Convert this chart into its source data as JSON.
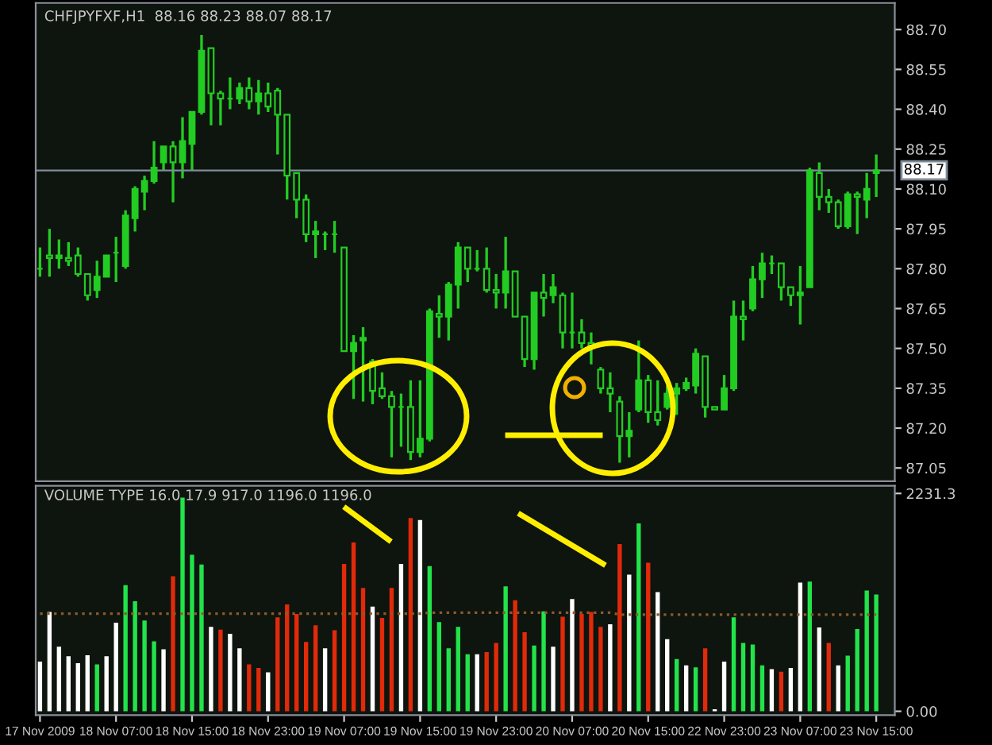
{
  "chart_data": [
    {
      "type": "candlestick",
      "title": "CHFJPYFXF,H1  88.16 88.23 88.07 88.17",
      "categories": [
        null,
        null,
        null,
        null,
        null,
        null,
        null,
        null,
        null,
        null,
        null,
        null,
        null,
        null,
        null,
        null,
        null,
        null,
        null,
        null,
        null,
        null,
        null,
        null,
        null,
        null,
        null,
        null,
        null,
        null,
        null,
        null,
        null,
        null,
        null,
        null,
        null,
        null,
        null,
        null,
        null,
        null,
        null,
        null,
        null,
        null,
        null,
        null,
        null,
        null,
        null,
        null,
        null,
        null,
        null,
        null,
        null,
        null,
        null,
        null,
        null,
        null,
        null,
        null,
        null,
        null,
        null,
        null,
        null,
        null,
        null,
        null,
        null,
        null,
        null,
        null,
        null,
        null,
        null,
        null,
        null,
        null,
        null,
        null,
        null,
        null,
        null,
        null,
        null
      ],
      "series": [
        {
          "color": "#22cc22",
          "ohlc": [
            [
              87.8,
              87.88,
              87.77,
              87.8
            ],
            [
              87.85,
              87.95,
              87.77,
              87.84
            ],
            [
              87.84,
              87.91,
              87.8,
              87.85
            ],
            [
              87.84,
              87.9,
              87.81,
              87.83
            ],
            [
              87.85,
              87.88,
              87.77,
              87.78
            ],
            [
              87.78,
              87.78,
              87.68,
              87.7
            ],
            [
              87.72,
              87.83,
              87.69,
              87.77
            ],
            [
              87.77,
              87.85,
              87.77,
              87.85
            ],
            [
              87.86,
              87.92,
              87.75,
              87.86
            ],
            [
              87.81,
              88.02,
              87.8,
              88.0
            ],
            [
              87.99,
              88.11,
              87.94,
              88.1
            ],
            [
              88.09,
              88.15,
              88.02,
              88.13
            ],
            [
              88.13,
              88.28,
              88.12,
              88.18
            ],
            [
              88.2,
              88.26,
              88.17,
              88.26
            ],
            [
              88.26,
              88.28,
              88.05,
              88.2
            ],
            [
              88.2,
              88.37,
              88.14,
              88.28
            ],
            [
              88.27,
              88.39,
              88.17,
              88.39
            ],
            [
              88.39,
              88.68,
              88.38,
              88.62
            ],
            [
              88.63,
              88.63,
              88.34,
              88.46
            ],
            [
              88.46,
              88.47,
              88.34,
              88.44
            ],
            [
              88.44,
              88.52,
              88.4,
              88.44
            ],
            [
              88.44,
              88.5,
              88.42,
              88.48
            ],
            [
              88.48,
              88.52,
              88.4,
              88.43
            ],
            [
              88.43,
              88.51,
              88.38,
              88.46
            ],
            [
              88.46,
              88.5,
              88.39,
              88.41
            ],
            [
              88.47,
              88.48,
              88.23,
              88.38
            ],
            [
              88.38,
              88.38,
              88.06,
              88.15
            ],
            [
              88.16,
              88.16,
              87.99,
              88.06
            ],
            [
              88.06,
              88.08,
              87.9,
              87.93
            ],
            [
              87.93,
              87.98,
              87.84,
              87.94
            ],
            [
              87.93,
              87.94,
              87.87,
              87.93
            ],
            [
              87.93,
              87.98,
              87.86,
              87.93
            ],
            [
              87.88,
              87.88,
              87.49,
              87.49
            ],
            [
              87.49,
              87.55,
              87.31,
              87.52
            ],
            [
              87.53,
              87.58,
              87.3,
              87.54
            ],
            [
              87.45,
              87.46,
              87.29,
              87.34
            ],
            [
              87.35,
              87.41,
              87.31,
              87.32
            ],
            [
              87.32,
              87.34,
              87.09,
              87.28
            ],
            [
              87.28,
              87.33,
              87.13,
              87.28
            ],
            [
              87.28,
              87.38,
              87.08,
              87.11
            ],
            [
              87.11,
              87.38,
              87.09,
              87.16
            ],
            [
              87.16,
              87.65,
              87.15,
              87.64
            ],
            [
              87.63,
              87.7,
              87.54,
              87.62
            ],
            [
              87.62,
              87.75,
              87.53,
              87.74
            ],
            [
              87.74,
              87.9,
              87.65,
              87.88
            ],
            [
              87.88,
              87.88,
              87.75,
              87.8
            ],
            [
              87.8,
              87.87,
              87.79,
              87.8
            ],
            [
              87.8,
              87.88,
              87.71,
              87.72
            ],
            [
              87.72,
              87.78,
              87.65,
              87.71
            ],
            [
              87.71,
              87.92,
              87.65,
              87.79
            ],
            [
              87.79,
              87.79,
              87.62,
              87.62
            ],
            [
              87.62,
              87.62,
              87.43,
              87.46
            ],
            [
              87.46,
              87.71,
              87.42,
              87.71
            ],
            [
              87.71,
              87.78,
              87.62,
              87.69
            ],
            [
              87.7,
              87.78,
              87.67,
              87.73
            ],
            [
              87.7,
              87.71,
              87.5,
              87.56
            ],
            [
              87.56,
              87.71,
              87.5,
              87.56
            ],
            [
              87.56,
              87.61,
              87.5,
              87.52
            ],
            [
              87.52,
              87.56,
              87.44,
              87.51
            ],
            [
              87.42,
              87.43,
              87.33,
              87.35
            ],
            [
              87.35,
              87.41,
              87.26,
              87.33
            ],
            [
              87.3,
              87.32,
              87.07,
              87.17
            ],
            [
              87.17,
              87.26,
              87.09,
              87.19
            ],
            [
              87.27,
              87.53,
              87.26,
              87.38
            ],
            [
              87.38,
              87.4,
              87.22,
              87.26
            ],
            [
              87.26,
              87.38,
              87.21,
              87.23
            ],
            [
              87.28,
              87.36,
              87.27,
              87.33
            ],
            [
              87.33,
              87.37,
              87.25,
              87.35
            ],
            [
              87.35,
              87.39,
              87.34,
              87.37
            ],
            [
              87.36,
              87.5,
              87.33,
              87.48
            ],
            [
              87.47,
              87.47,
              87.24,
              87.28
            ],
            [
              87.28,
              87.28,
              87.27,
              87.27
            ],
            [
              87.27,
              87.4,
              87.27,
              87.35
            ],
            [
              87.35,
              87.68,
              87.34,
              87.62
            ],
            [
              87.62,
              87.68,
              87.53,
              87.61
            ],
            [
              87.65,
              87.81,
              87.64,
              87.76
            ],
            [
              87.76,
              87.86,
              87.69,
              87.82
            ],
            [
              87.82,
              87.85,
              87.78,
              87.82
            ],
            [
              87.82,
              87.82,
              87.68,
              87.73
            ],
            [
              87.73,
              87.73,
              87.66,
              87.7
            ],
            [
              87.7,
              87.81,
              87.59,
              87.71
            ],
            [
              87.73,
              88.18,
              87.73,
              88.17
            ],
            [
              88.16,
              88.2,
              88.02,
              88.07
            ],
            [
              88.07,
              88.1,
              88.01,
              88.05
            ],
            [
              88.05,
              88.06,
              87.95,
              87.96
            ],
            [
              87.96,
              88.09,
              87.95,
              88.08
            ],
            [
              88.08,
              88.09,
              87.93,
              88.07
            ],
            [
              88.06,
              88.16,
              87.99,
              88.1
            ],
            [
              88.16,
              88.23,
              88.07,
              88.17
            ]
          ]
        }
      ],
      "ylim": [
        87.0,
        88.8
      ],
      "yticks": [
        {
          "value": 87.05,
          "label": "87.05"
        },
        {
          "value": 87.2,
          "label": "87.20"
        },
        {
          "value": 87.35,
          "label": "87.35"
        },
        {
          "value": 87.5,
          "label": "87.50"
        },
        {
          "value": 87.65,
          "label": "87.65"
        },
        {
          "value": 87.8,
          "label": "87.80"
        },
        {
          "value": 87.95,
          "label": "87.95"
        },
        {
          "value": 88.1,
          "label": "88.10"
        },
        {
          "value": 88.25,
          "label": "88.25"
        },
        {
          "value": 88.4,
          "label": "88.40"
        },
        {
          "value": 88.55,
          "label": "88.55"
        },
        {
          "value": 88.7,
          "label": "88.70"
        }
      ],
      "ref_lines": [
        {
          "axis": "y",
          "value": 88.17,
          "label": "88.17",
          "color": "#7f8c9a"
        }
      ],
      "tick_labels": "y",
      "grid": false,
      "legend": false
    },
    {
      "type": "bar",
      "title": "VOLUME TYPE 16.0 17.9 917.0 1196.0 1196.0",
      "categories": [
        "17 Nov 2009",
        null,
        null,
        null,
        null,
        null,
        null,
        null,
        "18 Nov 07:00",
        null,
        null,
        null,
        null,
        null,
        null,
        null,
        "18 Nov 15:00",
        null,
        null,
        null,
        null,
        null,
        null,
        null,
        "18 Nov 23:00",
        null,
        null,
        null,
        null,
        null,
        null,
        null,
        "19 Nov 07:00",
        null,
        null,
        null,
        null,
        null,
        null,
        null,
        "19 Nov 15:00",
        null,
        null,
        null,
        null,
        null,
        null,
        null,
        "19 Nov 23:00",
        null,
        null,
        null,
        null,
        null,
        null,
        null,
        "20 Nov 07:00",
        null,
        null,
        null,
        null,
        null,
        null,
        null,
        "20 Nov 15:00",
        null,
        null,
        null,
        null,
        null,
        null,
        null,
        "22 Nov 23:00",
        null,
        null,
        null,
        null,
        null,
        null,
        null,
        "23 Nov 07:00",
        null,
        null,
        null,
        null,
        null,
        null,
        null,
        "23 Nov 15:00"
      ],
      "series": [
        {
          "type": "bar",
          "colors": [
            "#ffffff",
            "#ffffff",
            "#ffffff",
            "#ffffff",
            "#ffffff",
            "#ffffff",
            "#22e34a",
            "#ffffff",
            "#ffffff",
            "#22e34a",
            "#22e34a",
            "#22e34a",
            "#22e34a",
            "#ffffff",
            "#e02a0a",
            "#22e34a",
            "#22e34a",
            "#22e34a",
            "#ffffff",
            "#e02a0a",
            "#ffffff",
            "#ffffff",
            "#e02a0a",
            "#e02a0a",
            "#ffffff",
            "#e02a0a",
            "#e02a0a",
            "#e02a0a",
            "#e02a0a",
            "#e02a0a",
            "#ffffff",
            "#e02a0a",
            "#e02a0a",
            "#e02a0a",
            "#e02a0a",
            "#ffffff",
            "#e02a0a",
            "#e02a0a",
            "#ffffff",
            "#e02a0a",
            "#ffffff",
            "#22e34a",
            "#22e34a",
            "#22e34a",
            "#22e34a",
            "#22e34a",
            "#ffffff",
            "#e02a0a",
            "#e02a0a",
            "#22e34a",
            "#e02a0a",
            "#e02a0a",
            "#22e34a",
            "#22e34a",
            "#ffffff",
            "#e02a0a",
            "#ffffff",
            "#e02a0a",
            "#e02a0a",
            "#e02a0a",
            "#ffffff",
            "#e02a0a",
            "#ffffff",
            "#22e34a",
            "#e02a0a",
            "#ffffff",
            "#ffffff",
            "#22e34a",
            "#ffffff",
            "#22e34a",
            "#e02a0a",
            "#ffffff",
            "#ffffff",
            "#22e34a",
            "#22e34a",
            "#22e34a",
            "#22e34a",
            "#ffffff",
            "#e02a0a",
            "#ffffff",
            "#ffffff",
            "#22e34a",
            "#ffffff",
            "#e02a0a",
            "#ffffff",
            "#22e34a",
            "#22e34a",
            "#22e34a",
            "#22e34a"
          ],
          "values": [
            509,
            1017,
            662,
            563,
            492,
            574,
            481,
            563,
            908,
            1291,
            1127,
            930,
            717,
            635,
            1384,
            2188,
            1603,
            1504,
            864,
            837,
            793,
            645,
            481,
            443,
            399,
            963,
            1094,
            996,
            711,
            881,
            645,
            831,
            1510,
            1729,
            1264,
            1072,
            957,
            1264,
            1510,
            1980,
            1958,
            1488,
            914,
            645,
            864,
            585,
            585,
            607,
            700,
            1280,
            1138,
            810,
            673,
            1023,
            662,
            968,
            1149,
            996,
            1017,
            864,
            892,
            1712,
            1400,
            1925,
            1521,
            1220,
            738,
            536,
            470,
            449,
            645,
            20,
            509,
            963,
            700,
            684,
            470,
            432,
            405,
            443,
            1318,
            1329,
            859,
            700,
            470,
            569,
            842,
            1236,
            1196
          ]
        },
        {
          "type": "line",
          "color": "#8b5a2b",
          "line_style": "dotted",
          "values": [
            1000,
            1000,
            1000,
            1000,
            1000,
            1000,
            1000,
            1000,
            1000,
            1000,
            1000,
            1000,
            1000,
            1000,
            1000,
            1000,
            1000,
            1000,
            1000,
            1000,
            1000,
            1000,
            1000,
            1000,
            1000,
            1000,
            1000,
            1000,
            1000,
            1000,
            1000,
            1000,
            1000,
            1000,
            1000,
            1000,
            1000,
            1000,
            1000,
            1000,
            1000,
            1010,
            1010,
            1010,
            1010,
            1010,
            1010,
            1010,
            1010,
            1010,
            1010,
            1010,
            1010,
            1010,
            1010,
            1010,
            1010,
            1010,
            1010,
            1010,
            1010,
            990,
            990,
            990,
            990,
            990,
            990,
            990,
            990,
            990,
            990,
            990,
            990,
            990,
            990,
            990,
            990,
            990,
            990,
            990,
            990,
            990,
            990,
            990,
            990,
            990,
            990,
            990,
            990
          ]
        }
      ],
      "ylim": [
        -40,
        2310
      ],
      "yticks": [
        {
          "value": 0,
          "label": "0.00"
        },
        2231.3
      ],
      "grid": false,
      "legend": false
    }
  ]
}
